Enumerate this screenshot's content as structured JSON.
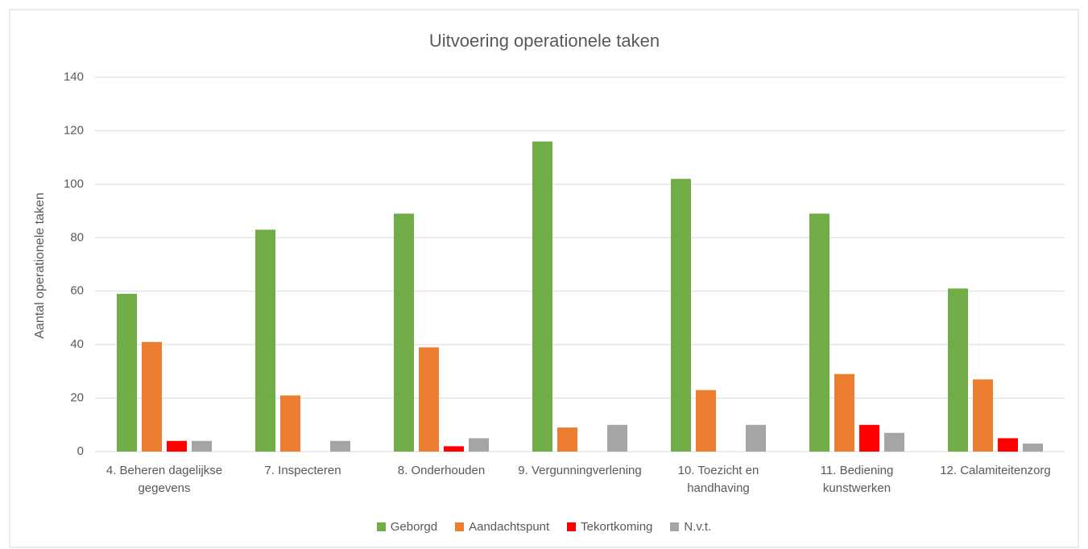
{
  "chart_data": {
    "type": "bar",
    "title": "Uitvoering operationele taken",
    "y_label": "Aantal operationele taken",
    "categories": [
      "4. Beheren dagelijkse gegevens",
      "7. Inspecteren",
      "8. Onderhouden",
      "9. Vergunningverlening",
      "10. Toezicht en handhaving",
      "11. Bediening kunstwerken",
      "12. Calamiteitenzorg"
    ],
    "series": [
      {
        "name": "Geborgd",
        "color": "#70ad47",
        "values": [
          59,
          83,
          89,
          116,
          102,
          89,
          61
        ]
      },
      {
        "name": "Aandachtspunt",
        "color": "#ed7d31",
        "values": [
          41,
          21,
          39,
          9,
          23,
          29,
          27
        ]
      },
      {
        "name": "Tekortkoming",
        "color": "#ff0000",
        "values": [
          4,
          0,
          2,
          0,
          0,
          10,
          5
        ]
      },
      {
        "name": "N.v.t.",
        "color": "#a5a5a5",
        "values": [
          4,
          4,
          5,
          10,
          10,
          7,
          3
        ]
      }
    ],
    "ylim": [
      0,
      140
    ],
    "yticks": [
      0,
      20,
      40,
      60,
      80,
      100,
      120,
      140
    ],
    "grid": true,
    "legend": "bottom"
  }
}
